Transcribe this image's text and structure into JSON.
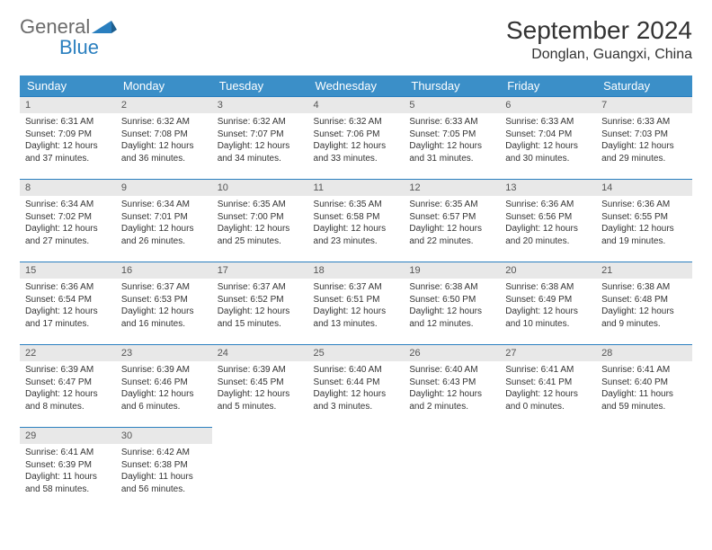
{
  "logo": {
    "text_top": "General",
    "text_bottom": "Blue",
    "icon_color": "#2a7fbf",
    "gray": "#6b6b6b"
  },
  "title": "September 2024",
  "location": "Donglan, Guangxi, China",
  "colors": {
    "header_bg": "#3b8fc8",
    "header_text": "#ffffff",
    "daynum_bg": "#e8e8e8",
    "daynum_border": "#2a7fbf",
    "body_text": "#333333"
  },
  "day_labels": [
    "Sunday",
    "Monday",
    "Tuesday",
    "Wednesday",
    "Thursday",
    "Friday",
    "Saturday"
  ],
  "weeks": [
    [
      {
        "n": "1",
        "sr": "6:31 AM",
        "ss": "7:09 PM",
        "dl": "12 hours and 37 minutes."
      },
      {
        "n": "2",
        "sr": "6:32 AM",
        "ss": "7:08 PM",
        "dl": "12 hours and 36 minutes."
      },
      {
        "n": "3",
        "sr": "6:32 AM",
        "ss": "7:07 PM",
        "dl": "12 hours and 34 minutes."
      },
      {
        "n": "4",
        "sr": "6:32 AM",
        "ss": "7:06 PM",
        "dl": "12 hours and 33 minutes."
      },
      {
        "n": "5",
        "sr": "6:33 AM",
        "ss": "7:05 PM",
        "dl": "12 hours and 31 minutes."
      },
      {
        "n": "6",
        "sr": "6:33 AM",
        "ss": "7:04 PM",
        "dl": "12 hours and 30 minutes."
      },
      {
        "n": "7",
        "sr": "6:33 AM",
        "ss": "7:03 PM",
        "dl": "12 hours and 29 minutes."
      }
    ],
    [
      {
        "n": "8",
        "sr": "6:34 AM",
        "ss": "7:02 PM",
        "dl": "12 hours and 27 minutes."
      },
      {
        "n": "9",
        "sr": "6:34 AM",
        "ss": "7:01 PM",
        "dl": "12 hours and 26 minutes."
      },
      {
        "n": "10",
        "sr": "6:35 AM",
        "ss": "7:00 PM",
        "dl": "12 hours and 25 minutes."
      },
      {
        "n": "11",
        "sr": "6:35 AM",
        "ss": "6:58 PM",
        "dl": "12 hours and 23 minutes."
      },
      {
        "n": "12",
        "sr": "6:35 AM",
        "ss": "6:57 PM",
        "dl": "12 hours and 22 minutes."
      },
      {
        "n": "13",
        "sr": "6:36 AM",
        "ss": "6:56 PM",
        "dl": "12 hours and 20 minutes."
      },
      {
        "n": "14",
        "sr": "6:36 AM",
        "ss": "6:55 PM",
        "dl": "12 hours and 19 minutes."
      }
    ],
    [
      {
        "n": "15",
        "sr": "6:36 AM",
        "ss": "6:54 PM",
        "dl": "12 hours and 17 minutes."
      },
      {
        "n": "16",
        "sr": "6:37 AM",
        "ss": "6:53 PM",
        "dl": "12 hours and 16 minutes."
      },
      {
        "n": "17",
        "sr": "6:37 AM",
        "ss": "6:52 PM",
        "dl": "12 hours and 15 minutes."
      },
      {
        "n": "18",
        "sr": "6:37 AM",
        "ss": "6:51 PM",
        "dl": "12 hours and 13 minutes."
      },
      {
        "n": "19",
        "sr": "6:38 AM",
        "ss": "6:50 PM",
        "dl": "12 hours and 12 minutes."
      },
      {
        "n": "20",
        "sr": "6:38 AM",
        "ss": "6:49 PM",
        "dl": "12 hours and 10 minutes."
      },
      {
        "n": "21",
        "sr": "6:38 AM",
        "ss": "6:48 PM",
        "dl": "12 hours and 9 minutes."
      }
    ],
    [
      {
        "n": "22",
        "sr": "6:39 AM",
        "ss": "6:47 PM",
        "dl": "12 hours and 8 minutes."
      },
      {
        "n": "23",
        "sr": "6:39 AM",
        "ss": "6:46 PM",
        "dl": "12 hours and 6 minutes."
      },
      {
        "n": "24",
        "sr": "6:39 AM",
        "ss": "6:45 PM",
        "dl": "12 hours and 5 minutes."
      },
      {
        "n": "25",
        "sr": "6:40 AM",
        "ss": "6:44 PM",
        "dl": "12 hours and 3 minutes."
      },
      {
        "n": "26",
        "sr": "6:40 AM",
        "ss": "6:43 PM",
        "dl": "12 hours and 2 minutes."
      },
      {
        "n": "27",
        "sr": "6:41 AM",
        "ss": "6:41 PM",
        "dl": "12 hours and 0 minutes."
      },
      {
        "n": "28",
        "sr": "6:41 AM",
        "ss": "6:40 PM",
        "dl": "11 hours and 59 minutes."
      }
    ],
    [
      {
        "n": "29",
        "sr": "6:41 AM",
        "ss": "6:39 PM",
        "dl": "11 hours and 58 minutes."
      },
      {
        "n": "30",
        "sr": "6:42 AM",
        "ss": "6:38 PM",
        "dl": "11 hours and 56 minutes."
      },
      null,
      null,
      null,
      null,
      null
    ]
  ],
  "labels": {
    "sunrise": "Sunrise: ",
    "sunset": "Sunset: ",
    "daylight": "Daylight: "
  }
}
